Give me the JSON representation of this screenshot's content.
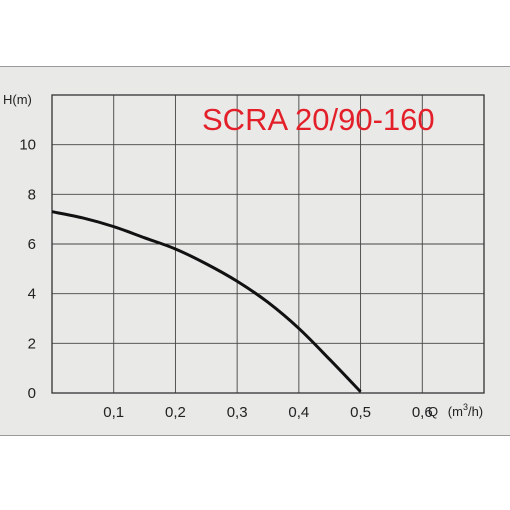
{
  "chart_data": {
    "type": "line",
    "title": "SCRA 20/90-160",
    "ylabel": "H(m)",
    "xlabel": "Q",
    "xunit_main": "m",
    "xunit_sup": "3",
    "xunit_tail": "/h",
    "xlim": [
      0,
      0.7
    ],
    "ylim": [
      0,
      12
    ],
    "x_ticks": [
      "0,1",
      "0,2",
      "0,3",
      "0,4",
      "0,5",
      "0,6"
    ],
    "y_ticks": [
      "0",
      "2",
      "4",
      "6",
      "8",
      "10"
    ],
    "grid": true,
    "series": [
      {
        "color": "#111111",
        "x": [
          0,
          0.05,
          0.1,
          0.15,
          0.2,
          0.25,
          0.3,
          0.35,
          0.4,
          0.45,
          0.5
        ],
        "y": [
          7.3,
          7.05,
          6.7,
          6.25,
          5.8,
          5.2,
          4.5,
          3.65,
          2.6,
          1.35,
          0.05
        ]
      }
    ]
  }
}
